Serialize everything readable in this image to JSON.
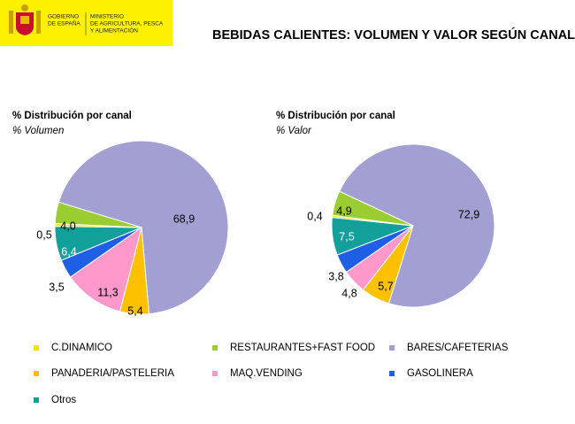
{
  "header": {
    "government": [
      "GOBIERNO",
      "DE ESPAÑA"
    ],
    "ministry": [
      "MINISTERIO",
      "DE AGRICULTURA, PESCA",
      "Y ALIMENTACIÓN"
    ]
  },
  "title": "BEBIDAS CALIENTES: VOLUMEN Y VALOR SEGÚN CANAL",
  "legend": [
    {
      "name": "C.DINAMICO",
      "color": "#f2e600"
    },
    {
      "name": "RESTAURANTES+FAST FOOD",
      "color": "#9acd32"
    },
    {
      "name": "BARES/CAFETERIAS",
      "color": "#a29fd2"
    },
    {
      "name": "PANADERIA/PASTELERIA",
      "color": "#ffc000"
    },
    {
      "name": "MAQ.VENDING",
      "color": "#ff99cc"
    },
    {
      "name": "GASOLINERA",
      "color": "#1f5fe6"
    },
    {
      "name": "Otros",
      "color": "#14a09a"
    }
  ],
  "chart_data": [
    {
      "type": "pie",
      "title": "% Distribución por canal",
      "subtitle": "% Volumen",
      "values": [
        0.5,
        4.0,
        68.9,
        5.4,
        11.3,
        3.5,
        6.4
      ],
      "value_labels": [
        "0,5",
        "4,0",
        "68,9",
        "5,4",
        "11,3",
        "3,5",
        "6,4"
      ]
    },
    {
      "type": "pie",
      "title": "% Distribución por canal",
      "subtitle": "% Valor",
      "values": [
        0.4,
        4.9,
        72.9,
        5.7,
        4.8,
        3.8,
        7.5
      ],
      "value_labels": [
        "0,4",
        "4,9",
        "72,9",
        "5,7",
        "4,8",
        "3,8",
        "7,5"
      ]
    }
  ]
}
